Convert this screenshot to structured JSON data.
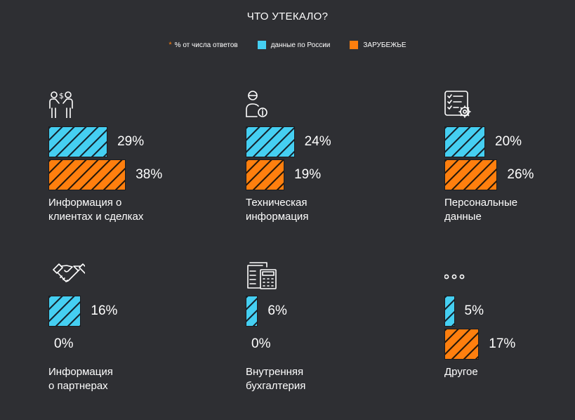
{
  "header": {
    "title": "ЧТО УТЕКАЛО?"
  },
  "legend": {
    "note_star": "*",
    "note_text": "% от числа ответов",
    "series_ru": "данные по России",
    "series_foreign": "ЗАРУБЕЖЬЕ",
    "color_ru": "#45cff2",
    "color_foreign": "#ff7f0e"
  },
  "chart_data": {
    "type": "bar",
    "title": "ЧТО УТЕКАЛО?",
    "unit": "%",
    "series": [
      {
        "name": "данные по России",
        "color": "#45cff2"
      },
      {
        "name": "ЗАРУБЕЖЬЕ",
        "color": "#ff7f0e"
      }
    ],
    "panels": [
      {
        "icon": "client-deal-icon",
        "label_lines": [
          "Информация о",
          "клиентах и сделках"
        ],
        "ru": 29,
        "foreign": 38,
        "ru_label": "29%",
        "foreign_label": "38%"
      },
      {
        "icon": "tech-user-info-icon",
        "label_lines": [
          "Техническая",
          "информация"
        ],
        "ru": 24,
        "foreign": 19,
        "ru_label": "24%",
        "foreign_label": "19%"
      },
      {
        "icon": "checklist-gear-icon",
        "label_lines": [
          "Персональные",
          "данные"
        ],
        "ru": 20,
        "foreign": 26,
        "ru_label": "20%",
        "foreign_label": "26%"
      },
      {
        "icon": "handshake-icon",
        "label_lines": [
          "Информация",
          "о партнерах"
        ],
        "ru": 16,
        "foreign": 0,
        "ru_label": "16%",
        "foreign_label": "0%"
      },
      {
        "icon": "accounting-icon",
        "label_lines": [
          "Внутренняя",
          "бухгалтерия"
        ],
        "ru": 6,
        "foreign": 0,
        "ru_label": "6%",
        "foreign_label": "0%"
      },
      {
        "icon": "more-dots-icon",
        "label_lines": [
          "Другое",
          ""
        ],
        "ru": 5,
        "foreign": 17,
        "ru_label": "5%",
        "foreign_label": "17%"
      }
    ]
  }
}
